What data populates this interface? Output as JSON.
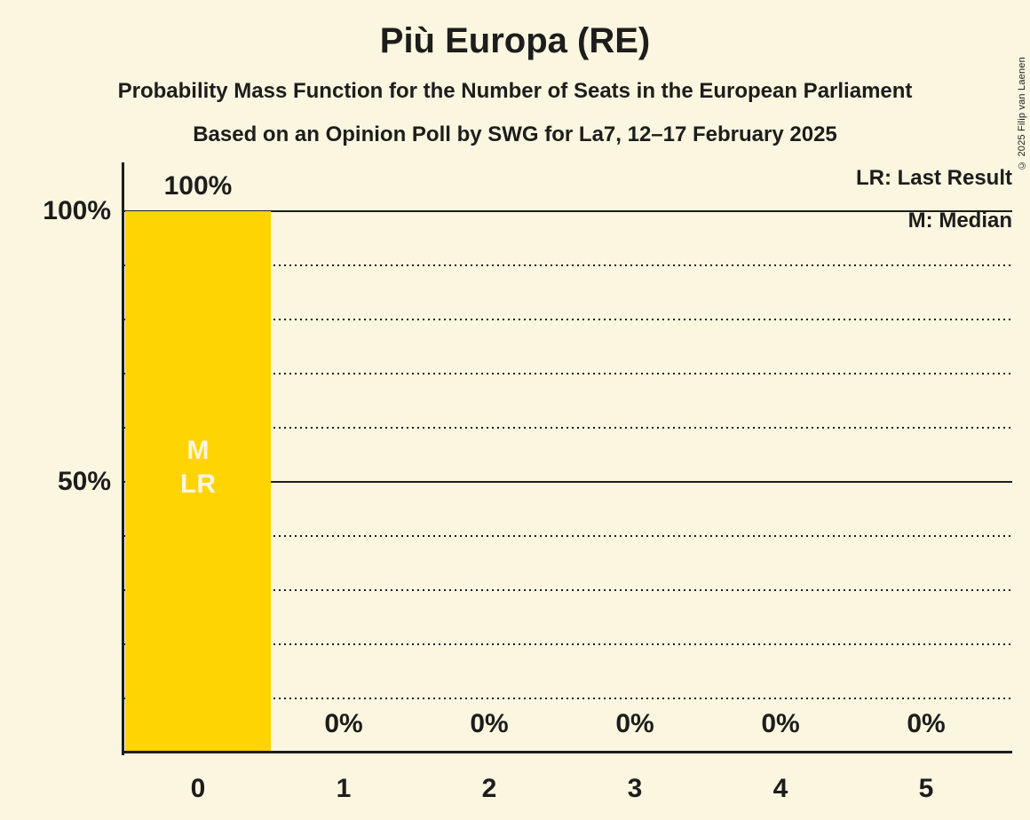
{
  "title": "Più Europa (RE)",
  "subtitles": [
    "Probability Mass Function for the Number of Seats in the European Parliament",
    "Based on an Opinion Poll by SWG for La7, 12–17 February 2025"
  ],
  "copyright": "© 2025 Filip van Laenen",
  "legend": {
    "last_result": "LR: Last Result",
    "median": "M: Median"
  },
  "colors": {
    "background": "#FAF6E0",
    "bar": "#FFD400",
    "text": "#1D1D1B",
    "bar_inner_text": "#FAF6E0"
  },
  "chart_data": {
    "type": "bar",
    "categories": [
      "0",
      "1",
      "2",
      "3",
      "4",
      "5"
    ],
    "values": [
      100,
      0,
      0,
      0,
      0,
      0
    ],
    "value_labels": [
      "100%",
      "0%",
      "0%",
      "0%",
      "0%",
      "0%"
    ],
    "annotations": {
      "bar_with_markers": "0",
      "bar_inner_labels": [
        "M",
        "LR"
      ]
    },
    "y_axis": {
      "tick_labels": [
        "100%",
        "50%"
      ],
      "tick_values": [
        100,
        50
      ],
      "solid_gridlines": [
        100,
        50
      ],
      "dotted_gridlines": [
        90,
        80,
        70,
        60,
        40,
        30,
        20,
        10
      ],
      "range": [
        0,
        100
      ]
    },
    "x_axis_tick_labels": [
      "0",
      "1",
      "2",
      "3",
      "4",
      "5"
    ],
    "legend_position": "top-right",
    "grid": "horizontal-10pct"
  }
}
